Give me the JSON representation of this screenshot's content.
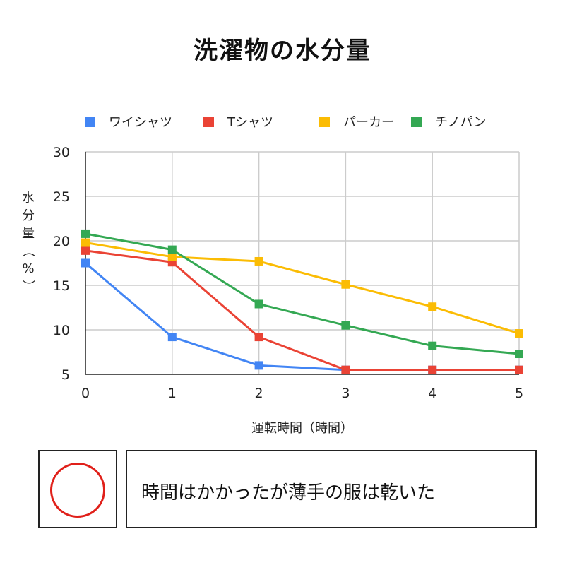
{
  "title": "洗濯物の水分量",
  "chart_data": {
    "type": "line",
    "title": "洗濯物の水分量",
    "xlabel": "運転時間（時間）",
    "ylabel": "水分量（%）",
    "x": [
      0,
      1,
      2,
      3,
      4,
      5
    ],
    "xlim": [
      0,
      5
    ],
    "ylim": [
      5,
      30
    ],
    "yticks": [
      5,
      10,
      15,
      20,
      25,
      30
    ],
    "grid": true,
    "legend_position": "top",
    "marker": "square",
    "series": [
      {
        "name": "ワイシャツ",
        "color": "#4285f4",
        "values": [
          17.5,
          9.2,
          6.0,
          5.5,
          5.5,
          5.5
        ]
      },
      {
        "name": "Tシャツ",
        "color": "#ea4335",
        "values": [
          18.9,
          17.6,
          9.2,
          5.5,
          5.5,
          5.5
        ]
      },
      {
        "name": "パーカー",
        "color": "#fbbc04",
        "values": [
          19.8,
          18.2,
          17.7,
          15.1,
          12.6,
          9.6
        ]
      },
      {
        "name": "チノパン",
        "color": "#34a853",
        "values": [
          20.8,
          19.0,
          12.9,
          10.5,
          8.2,
          7.3
        ]
      }
    ]
  },
  "result": {
    "mark": "circle",
    "mark_color": "#e0201a",
    "comment": "時間はかかったが薄手の服は乾いた"
  }
}
